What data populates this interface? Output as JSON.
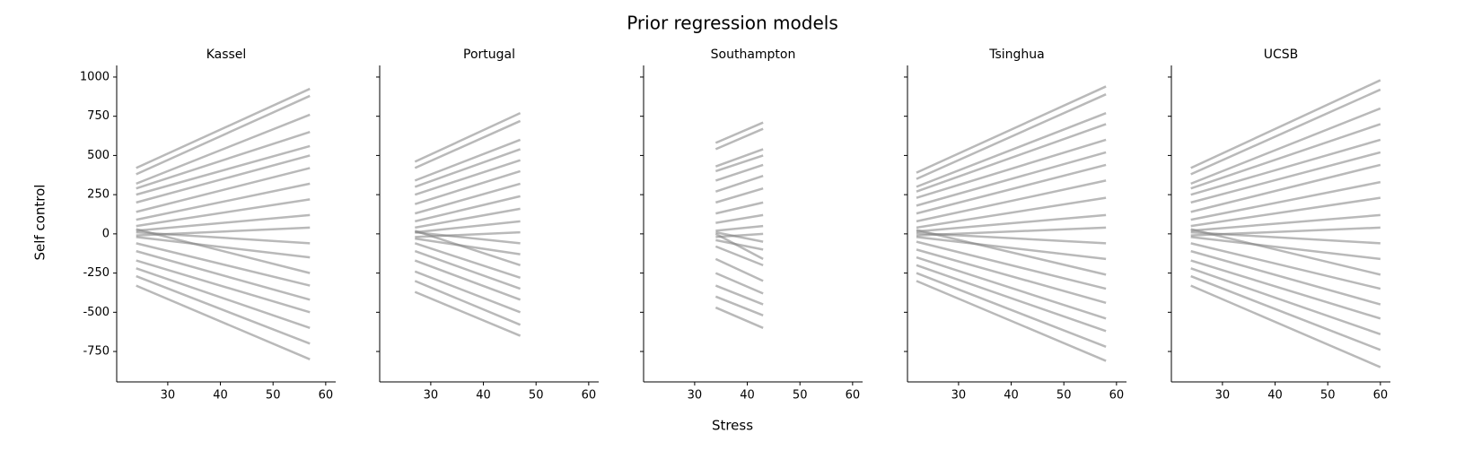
{
  "title": "Prior regression models",
  "x_label": "Stress",
  "y_label": "Self control",
  "chart_data": [
    {
      "type": "line",
      "title": "Kassel",
      "color": "#808080",
      "x": [
        24,
        57
      ],
      "xlim": [
        20.3,
        61.9
      ],
      "xticks": [
        30,
        40,
        50,
        60
      ],
      "ylim": [
        -944,
        1074
      ],
      "yticks": [
        -750,
        -500,
        -250,
        0,
        250,
        500,
        750,
        1000
      ],
      "series": [
        {
          "values": [
            420,
            925
          ]
        },
        {
          "values": [
            380,
            880
          ]
        },
        {
          "values": [
            320,
            760
          ]
        },
        {
          "values": [
            290,
            650
          ]
        },
        {
          "values": [
            250,
            560
          ]
        },
        {
          "values": [
            200,
            500
          ]
        },
        {
          "values": [
            140,
            420
          ]
        },
        {
          "values": [
            90,
            320
          ]
        },
        {
          "values": [
            50,
            220
          ]
        },
        {
          "values": [
            20,
            120
          ]
        },
        {
          "values": [
            -10,
            40
          ]
        },
        {
          "values": [
            10,
            -60
          ]
        },
        {
          "values": [
            -20,
            -150
          ]
        },
        {
          "values": [
            30,
            -250
          ]
        },
        {
          "values": [
            -60,
            -330
          ]
        },
        {
          "values": [
            -110,
            -420
          ]
        },
        {
          "values": [
            -170,
            -500
          ]
        },
        {
          "values": [
            -220,
            -600
          ]
        },
        {
          "values": [
            -270,
            -700
          ]
        },
        {
          "values": [
            -330,
            -800
          ]
        }
      ]
    },
    {
      "type": "line",
      "title": "Portugal",
      "color": "#808080",
      "x": [
        27,
        47
      ],
      "xlim": [
        20.3,
        61.9
      ],
      "xticks": [
        30,
        40,
        50,
        60
      ],
      "ylim": [
        -944,
        1074
      ],
      "yticks": [
        -750,
        -500,
        -250,
        0,
        250,
        500,
        750,
        1000
      ],
      "series": [
        {
          "values": [
            460,
            770
          ]
        },
        {
          "values": [
            420,
            720
          ]
        },
        {
          "values": [
            340,
            600
          ]
        },
        {
          "values": [
            300,
            540
          ]
        },
        {
          "values": [
            250,
            470
          ]
        },
        {
          "values": [
            190,
            400
          ]
        },
        {
          "values": [
            130,
            320
          ]
        },
        {
          "values": [
            80,
            240
          ]
        },
        {
          "values": [
            40,
            160
          ]
        },
        {
          "values": [
            10,
            80
          ]
        },
        {
          "values": [
            -20,
            10
          ]
        },
        {
          "values": [
            10,
            -60
          ]
        },
        {
          "values": [
            -30,
            -130
          ]
        },
        {
          "values": [
            20,
            -200
          ]
        },
        {
          "values": [
            -60,
            -280
          ]
        },
        {
          "values": [
            -110,
            -350
          ]
        },
        {
          "values": [
            -170,
            -420
          ]
        },
        {
          "values": [
            -240,
            -500
          ]
        },
        {
          "values": [
            -300,
            -580
          ]
        },
        {
          "values": [
            -370,
            -650
          ]
        }
      ]
    },
    {
      "type": "line",
      "title": "Southampton",
      "color": "#808080",
      "x": [
        34,
        43
      ],
      "xlim": [
        20.3,
        61.9
      ],
      "xticks": [
        30,
        40,
        50,
        60
      ],
      "ylim": [
        -944,
        1074
      ],
      "yticks": [
        -750,
        -500,
        -250,
        0,
        250,
        500,
        750,
        1000
      ],
      "series": [
        {
          "values": [
            580,
            710
          ]
        },
        {
          "values": [
            540,
            670
          ]
        },
        {
          "values": [
            430,
            540
          ]
        },
        {
          "values": [
            400,
            500
          ]
        },
        {
          "values": [
            340,
            440
          ]
        },
        {
          "values": [
            270,
            370
          ]
        },
        {
          "values": [
            200,
            290
          ]
        },
        {
          "values": [
            130,
            200
          ]
        },
        {
          "values": [
            70,
            120
          ]
        },
        {
          "values": [
            20,
            50
          ]
        },
        {
          "values": [
            -20,
            0
          ]
        },
        {
          "values": [
            10,
            -50
          ]
        },
        {
          "values": [
            -40,
            -100
          ]
        },
        {
          "values": [
            0,
            -160
          ]
        },
        {
          "values": [
            -80,
            -200
          ]
        },
        {
          "values": [
            -160,
            -300
          ]
        },
        {
          "values": [
            -250,
            -380
          ]
        },
        {
          "values": [
            -330,
            -450
          ]
        },
        {
          "values": [
            -400,
            -520
          ]
        },
        {
          "values": [
            -470,
            -600
          ]
        }
      ]
    },
    {
      "type": "line",
      "title": "Tsinghua",
      "color": "#808080",
      "x": [
        22,
        58
      ],
      "xlim": [
        20.3,
        61.9
      ],
      "xticks": [
        30,
        40,
        50,
        60
      ],
      "ylim": [
        -944,
        1074
      ],
      "yticks": [
        -750,
        -500,
        -250,
        0,
        250,
        500,
        750,
        1000
      ],
      "series": [
        {
          "values": [
            390,
            940
          ]
        },
        {
          "values": [
            350,
            890
          ]
        },
        {
          "values": [
            300,
            770
          ]
        },
        {
          "values": [
            270,
            700
          ]
        },
        {
          "values": [
            230,
            600
          ]
        },
        {
          "values": [
            180,
            520
          ]
        },
        {
          "values": [
            130,
            440
          ]
        },
        {
          "values": [
            80,
            340
          ]
        },
        {
          "values": [
            40,
            230
          ]
        },
        {
          "values": [
            15,
            120
          ]
        },
        {
          "values": [
            -10,
            40
          ]
        },
        {
          "values": [
            5,
            -60
          ]
        },
        {
          "values": [
            -20,
            -160
          ]
        },
        {
          "values": [
            25,
            -260
          ]
        },
        {
          "values": [
            -50,
            -350
          ]
        },
        {
          "values": [
            -100,
            -440
          ]
        },
        {
          "values": [
            -150,
            -540
          ]
        },
        {
          "values": [
            -200,
            -620
          ]
        },
        {
          "values": [
            -250,
            -720
          ]
        },
        {
          "values": [
            -300,
            -810
          ]
        }
      ]
    },
    {
      "type": "line",
      "title": "UCSB",
      "color": "#808080",
      "x": [
        24,
        60
      ],
      "xlim": [
        20.3,
        61.9
      ],
      "xticks": [
        30,
        40,
        50,
        60
      ],
      "ylim": [
        -944,
        1074
      ],
      "yticks": [
        -750,
        -500,
        -250,
        0,
        250,
        500,
        750,
        1000
      ],
      "series": [
        {
          "values": [
            420,
            980
          ]
        },
        {
          "values": [
            380,
            920
          ]
        },
        {
          "values": [
            320,
            800
          ]
        },
        {
          "values": [
            290,
            700
          ]
        },
        {
          "values": [
            250,
            600
          ]
        },
        {
          "values": [
            200,
            520
          ]
        },
        {
          "values": [
            140,
            440
          ]
        },
        {
          "values": [
            90,
            330
          ]
        },
        {
          "values": [
            50,
            230
          ]
        },
        {
          "values": [
            20,
            120
          ]
        },
        {
          "values": [
            -10,
            40
          ]
        },
        {
          "values": [
            10,
            -60
          ]
        },
        {
          "values": [
            -20,
            -160
          ]
        },
        {
          "values": [
            30,
            -260
          ]
        },
        {
          "values": [
            -60,
            -350
          ]
        },
        {
          "values": [
            -110,
            -450
          ]
        },
        {
          "values": [
            -170,
            -540
          ]
        },
        {
          "values": [
            -220,
            -640
          ]
        },
        {
          "values": [
            -270,
            -740
          ]
        },
        {
          "values": [
            -330,
            -850
          ]
        }
      ]
    }
  ]
}
